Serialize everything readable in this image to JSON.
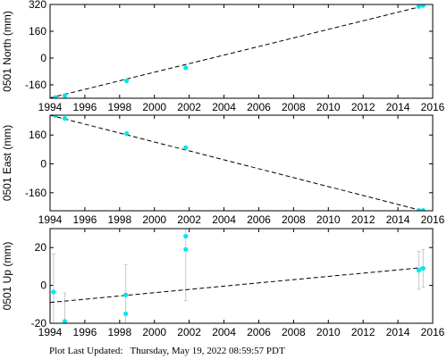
{
  "footer": "Plot Last Updated:   Thursday, May 19, 2022 08:59:57 PDT",
  "colors": {
    "points": "#00e5ee",
    "trend": "#000000",
    "errorbar": "#c8c8c8",
    "axes": "#000000"
  },
  "chart_data": [
    {
      "type": "scatter",
      "ylabel": "0501 North (mm)",
      "xlim": [
        1994,
        2016
      ],
      "ylim": [
        -240,
        320
      ],
      "xticks": [
        1994,
        1996,
        1998,
        2000,
        2002,
        2004,
        2006,
        2008,
        2010,
        2012,
        2014,
        2016
      ],
      "yticks": [
        -160,
        0,
        160,
        320
      ],
      "trend": {
        "x": [
          1994,
          2015.5
        ],
        "y": [
          -238,
          312
        ]
      },
      "points": [
        {
          "x": 1994.3,
          "y": -236,
          "err": 0
        },
        {
          "x": 1994.85,
          "y": -224,
          "err": 0
        },
        {
          "x": 1998.4,
          "y": -136,
          "err": 0
        },
        {
          "x": 2001.8,
          "y": -58,
          "err": 0
        },
        {
          "x": 2015.2,
          "y": 308,
          "err": 0
        },
        {
          "x": 2015.45,
          "y": 314,
          "err": 0
        }
      ]
    },
    {
      "type": "scatter",
      "ylabel": "0501 East (mm)",
      "xlim": [
        1994,
        2016
      ],
      "ylim": [
        -260,
        270
      ],
      "xticks": [
        1994,
        1996,
        1998,
        2000,
        2002,
        2004,
        2006,
        2008,
        2010,
        2012,
        2014,
        2016
      ],
      "yticks": [
        -160,
        0,
        160
      ],
      "trend": {
        "x": [
          1994,
          2015.5
        ],
        "y": [
          270,
          -262
        ]
      },
      "points": [
        {
          "x": 1994.3,
          "y": 268,
          "err": 0
        },
        {
          "x": 1994.85,
          "y": 252,
          "err": 0
        },
        {
          "x": 1998.4,
          "y": 168,
          "err": 0
        },
        {
          "x": 2001.8,
          "y": 90,
          "err": 0
        },
        {
          "x": 2015.2,
          "y": -258,
          "err": 0
        },
        {
          "x": 2015.45,
          "y": -258,
          "err": 0
        }
      ]
    },
    {
      "type": "scatter",
      "ylabel": "0501 Up (mm)",
      "xlim": [
        1994,
        2016
      ],
      "ylim": [
        -20,
        30
      ],
      "xticks": [
        1994,
        1996,
        1998,
        2000,
        2002,
        2004,
        2006,
        2008,
        2010,
        2012,
        2014,
        2016
      ],
      "yticks": [
        -20,
        0,
        20
      ],
      "trend": {
        "x": [
          1994,
          2015.5
        ],
        "y": [
          -9,
          9.5
        ]
      },
      "points": [
        {
          "x": 1994.2,
          "y": -3.5,
          "err": 20
        },
        {
          "x": 1994.85,
          "y": -19,
          "err": 15
        },
        {
          "x": 1998.35,
          "y": -5,
          "err": 16
        },
        {
          "x": 1998.35,
          "y": -15,
          "err": 0
        },
        {
          "x": 2001.8,
          "y": 19,
          "err": 27
        },
        {
          "x": 2001.8,
          "y": 26,
          "err": 0
        },
        {
          "x": 2015.2,
          "y": 8,
          "err": 10
        },
        {
          "x": 2015.45,
          "y": 9,
          "err": 10
        }
      ]
    }
  ]
}
